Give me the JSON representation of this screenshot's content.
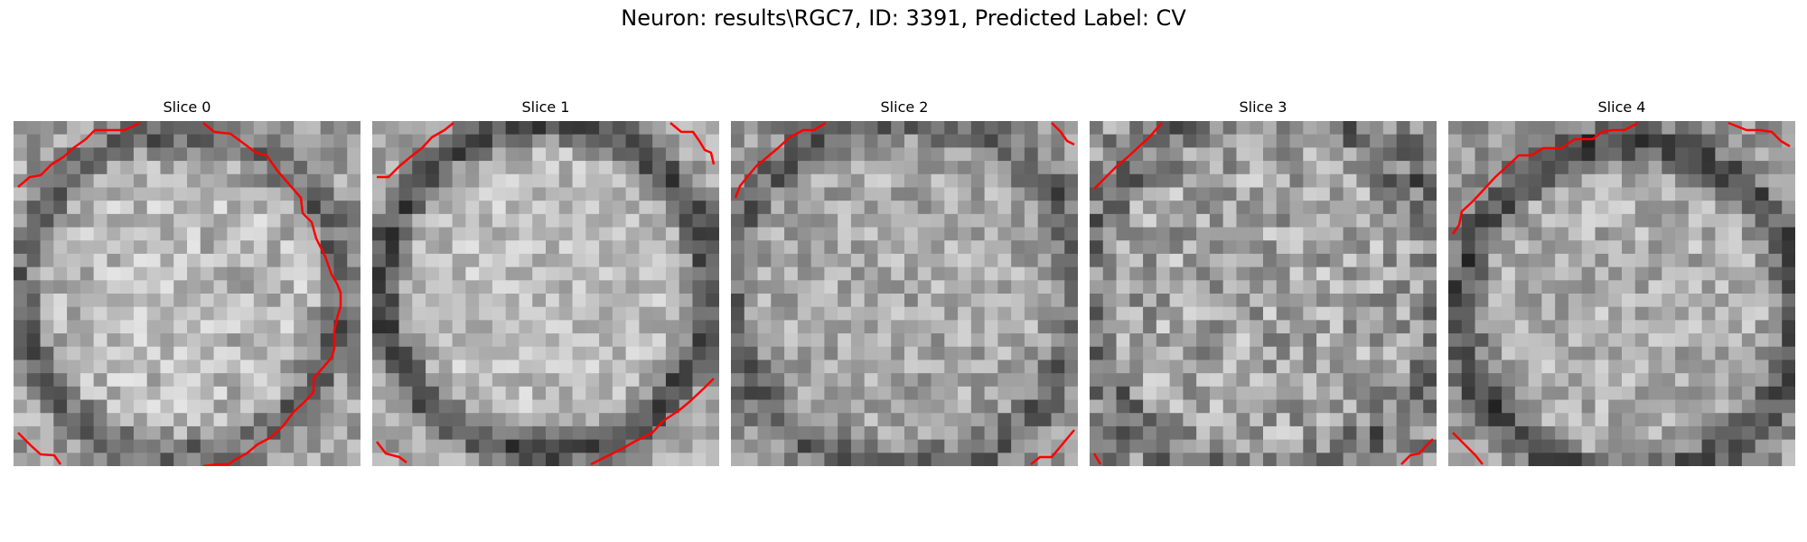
{
  "figure": {
    "title": "Neuron: results\\RGC7, ID: 3391, Predicted Label: CV"
  },
  "panels": [
    {
      "label": "Slice 0"
    },
    {
      "label": "Slice 1"
    },
    {
      "label": "Slice 2"
    },
    {
      "label": "Slice 3"
    },
    {
      "label": "Slice 4"
    }
  ],
  "colors": {
    "contour": "#ff0000",
    "background": "#ffffff"
  }
}
